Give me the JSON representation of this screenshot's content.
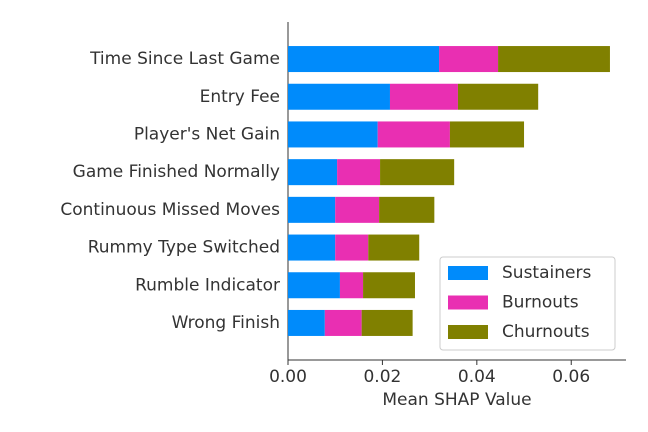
{
  "chart_data": {
    "type": "stacked_bar_horizontal",
    "categories": [
      "Time Since Last Game",
      "Entry Fee",
      "Player's Net Gain",
      "Game Finished Normally",
      "Continuous Missed Moves",
      "Rummy Type Switched",
      "Rumble Indicator",
      "Wrong Finish"
    ],
    "series": [
      {
        "name": "Sustainers",
        "color": "#008bfb",
        "values": [
          0.032,
          0.0216,
          0.019,
          0.0104,
          0.01,
          0.01,
          0.011,
          0.0078
        ]
      },
      {
        "name": "Burnouts",
        "color": "#e92fb2",
        "values": [
          0.0125,
          0.0144,
          0.0153,
          0.0091,
          0.0093,
          0.007,
          0.0049,
          0.0078
        ]
      },
      {
        "name": "Churnouts",
        "color": "#808000",
        "values": [
          0.0237,
          0.017,
          0.0157,
          0.0157,
          0.0117,
          0.0108,
          0.011,
          0.0108
        ]
      }
    ],
    "x_label": "Mean SHAP Value",
    "xlim": [
      0,
      0.0716
    ],
    "xticks": [
      {
        "value": 0,
        "label": "0.00"
      },
      {
        "value": 0.02,
        "label": "0.02"
      },
      {
        "value": 0.04,
        "label": "0.04"
      },
      {
        "value": 0.06,
        "label": "0.06"
      }
    ],
    "legend_position": "lower right"
  }
}
